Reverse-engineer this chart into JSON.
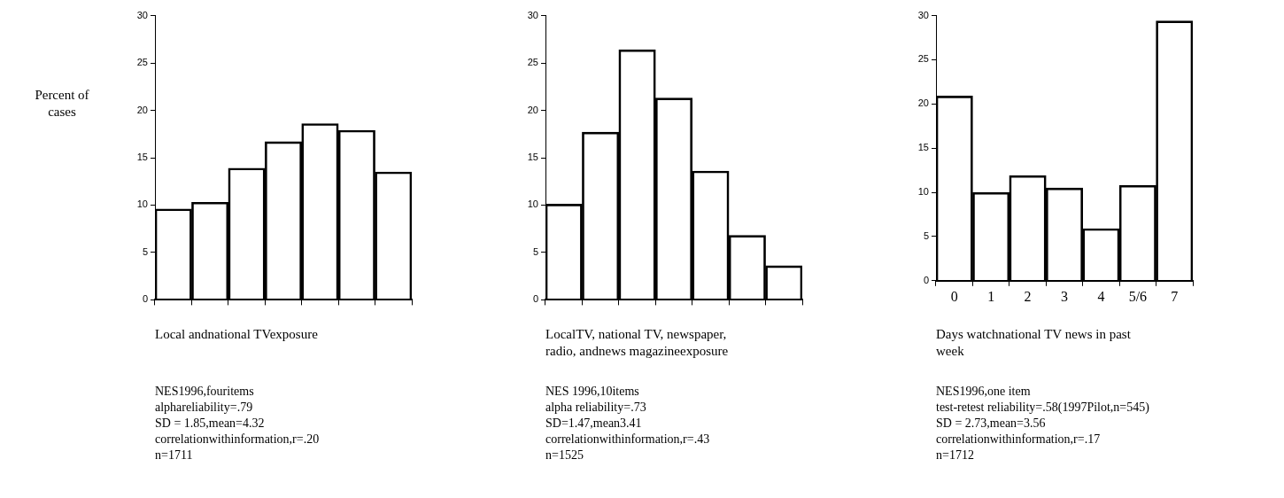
{
  "chart_data": [
    {
      "type": "bar",
      "ylabel": "Percent of cases",
      "xlabel": "Local andnational TVexposure",
      "categories": [
        null,
        null,
        null,
        null,
        null,
        null,
        null
      ],
      "values": [
        9.6,
        10.3,
        13.9,
        16.7,
        18.6,
        17.9,
        13.5
      ],
      "color": "#000000",
      "ylim": [
        0,
        30
      ],
      "yticks": [
        0,
        5,
        10,
        15,
        20,
        25,
        30
      ],
      "grid": false,
      "tick_labels": "y",
      "annotations": [
        "NES1996,fouritems",
        "alphareliability=.79",
        "SD = 1.85,mean=4.32",
        "correlationwithinformation,r=.20",
        "n=1711"
      ]
    },
    {
      "type": "bar",
      "xlabel": "LocalTV, national TV, newspaper, radio, andnews magazineexposure",
      "categories": [
        null,
        null,
        null,
        null,
        null,
        null,
        null
      ],
      "values": [
        10.1,
        17.7,
        26.4,
        21.3,
        13.6,
        6.8,
        3.6
      ],
      "color": "#000000",
      "ylim": [
        0,
        30
      ],
      "yticks": [
        0,
        5,
        10,
        15,
        20,
        25,
        30
      ],
      "grid": false,
      "tick_labels": "y",
      "annotations": [
        "NES 1996,10items",
        "alpha reliability=.73",
        "SD=1.47,mean3.41",
        "correlationwithinformation,r=.43",
        "n=1525"
      ]
    },
    {
      "type": "bar",
      "xlabel": "Days watchnational TV news in past week",
      "categories": [
        "0",
        "1",
        "2",
        "3",
        "4",
        "5/6",
        "7"
      ],
      "values": [
        20.9,
        10.0,
        11.9,
        10.5,
        5.9,
        10.8,
        29.4
      ],
      "color": "#000000",
      "ylim": [
        0,
        30
      ],
      "yticks": [
        0,
        5,
        10,
        15,
        20,
        25,
        30
      ],
      "grid": false,
      "annotations": [
        "NES1996,one  item",
        "test-retest reliability=.58(1997Pilot,n=545)",
        "SD = 2.73,mean=3.56",
        "correlationwithinformation,r=.17",
        "n=1712"
      ]
    }
  ]
}
